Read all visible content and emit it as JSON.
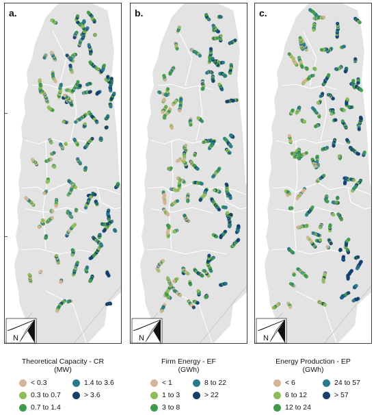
{
  "colors": {
    "class1": "#d4b596",
    "class2": "#8fbc5a",
    "class3": "#3f9a4a",
    "class4": "#2a7a8c",
    "class5": "#163f6e",
    "land": "#e3e3e3",
    "border": "#ffffff"
  },
  "north_arrow": {
    "icon": "north-arrow-icon",
    "label": "N"
  },
  "panels": [
    {
      "label": "a.",
      "legend": {
        "title": "Theoretical Capacity - CR",
        "unit": "(MW)",
        "items": [
          "< 0.3",
          "0.3 to 0.7",
          "0.7 to 1.4",
          "1.4 to 3.6",
          "> 3.6"
        ]
      }
    },
    {
      "label": "b.",
      "legend": {
        "title": "Firm Energy - EF",
        "unit": "(GWh)",
        "items": [
          "< 1",
          "1 to 3",
          "3 to 8",
          "8 to 22",
          "> 22"
        ]
      }
    },
    {
      "label": "c.",
      "legend": {
        "title": "Energy Production - EP",
        "unit": "(GWh)",
        "items": [
          "< 6",
          "6 to 12",
          "12 to 24",
          "24 to 57",
          "> 57"
        ]
      }
    }
  ]
}
